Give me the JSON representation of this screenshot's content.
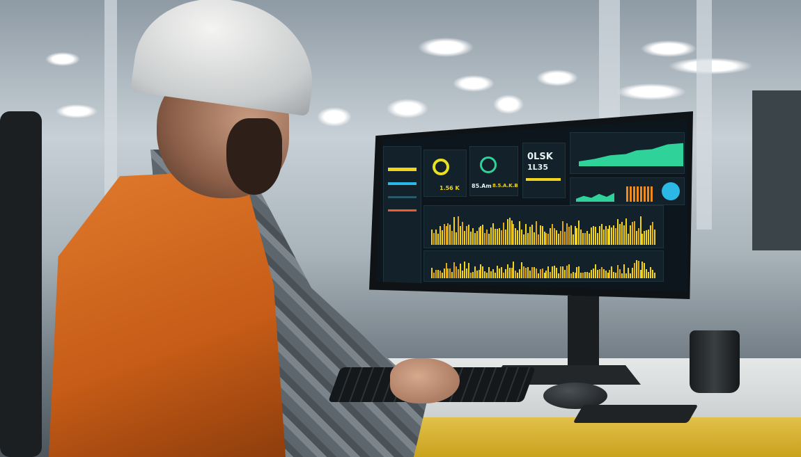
{
  "scene": "factory-worker-at-monitor",
  "colors": {
    "vest": "#d46a20",
    "dashboard_bg": "#0c161c",
    "accent_yellow": "#f2d41c",
    "accent_green": "#2fd39a",
    "accent_cyan": "#2cb8e6",
    "accent_orange": "#f08a1c"
  },
  "dashboard": {
    "kpi_big_1": "0LSK",
    "kpi_big_2": "1L35",
    "gauge1_value": "1.56 K",
    "gauge2_value_a": "85.Am",
    "gauge2_value_b": "8.5.A.K.B"
  }
}
